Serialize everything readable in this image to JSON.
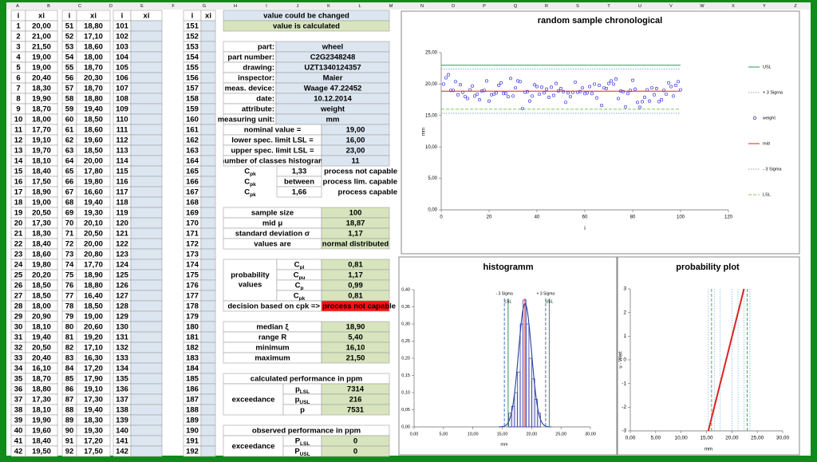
{
  "column_letters": [
    "A",
    "B",
    "C",
    "D",
    "E",
    "F",
    "G",
    "H",
    "I",
    "J",
    "K",
    "L",
    "M",
    "N",
    "O",
    "P",
    "Q",
    "R",
    "S",
    "T",
    "U",
    "V",
    "W",
    "X",
    "Y",
    "Z"
  ],
  "measurements": {
    "headers": [
      "i",
      "xi",
      "i",
      "xi",
      "i",
      "xi",
      "i",
      "xi"
    ],
    "rows": [
      [
        1,
        "20,00",
        51,
        "18,80",
        101,
        151
      ],
      [
        2,
        "21,00",
        52,
        "17,10",
        102,
        152
      ],
      [
        3,
        "21,50",
        53,
        "18,60",
        103,
        153
      ],
      [
        4,
        "19,00",
        54,
        "18,00",
        104,
        154
      ],
      [
        5,
        "19,00",
        55,
        "18,70",
        105,
        155
      ],
      [
        6,
        "20,40",
        56,
        "20,30",
        106,
        156
      ],
      [
        7,
        "18,30",
        57,
        "18,70",
        107,
        157
      ],
      [
        8,
        "19,90",
        58,
        "18,80",
        108,
        158
      ],
      [
        9,
        "18,70",
        59,
        "19,40",
        109,
        159
      ],
      [
        10,
        "18,00",
        60,
        "18,50",
        110,
        160
      ],
      [
        11,
        "17,70",
        61,
        "18,60",
        111,
        161
      ],
      [
        12,
        "19,10",
        62,
        "19,60",
        112,
        162
      ],
      [
        13,
        "19,70",
        63,
        "18,50",
        113,
        163
      ],
      [
        14,
        "18,10",
        64,
        "20,00",
        114,
        164
      ],
      [
        15,
        "18,40",
        65,
        "17,80",
        115,
        165
      ],
      [
        16,
        "17,50",
        66,
        "19,80",
        116,
        166
      ],
      [
        17,
        "18,90",
        67,
        "16,60",
        117,
        167
      ],
      [
        18,
        "19,00",
        68,
        "19,40",
        118,
        168
      ],
      [
        19,
        "20,50",
        69,
        "19,30",
        119,
        169
      ],
      [
        20,
        "17,30",
        70,
        "20,10",
        120,
        170
      ],
      [
        21,
        "18,30",
        71,
        "20,50",
        121,
        171
      ],
      [
        22,
        "18,40",
        72,
        "20,00",
        122,
        172
      ],
      [
        23,
        "18,60",
        73,
        "20,80",
        123,
        173
      ],
      [
        24,
        "19,80",
        74,
        "17,70",
        124,
        174
      ],
      [
        25,
        "20,20",
        75,
        "18,90",
        125,
        175
      ],
      [
        26,
        "18,50",
        76,
        "18,80",
        126,
        176
      ],
      [
        27,
        "18,50",
        77,
        "16,40",
        127,
        177
      ],
      [
        28,
        "18,00",
        78,
        "18,50",
        128,
        178
      ],
      [
        29,
        "20,90",
        79,
        "19,00",
        129,
        179
      ],
      [
        30,
        "18,10",
        80,
        "20,60",
        130,
        180
      ],
      [
        31,
        "19,40",
        81,
        "19,20",
        131,
        181
      ],
      [
        32,
        "20,50",
        82,
        "17,10",
        132,
        182
      ],
      [
        33,
        "20,40",
        83,
        "16,30",
        133,
        183
      ],
      [
        34,
        "16,10",
        84,
        "17,20",
        134,
        184
      ],
      [
        35,
        "18,70",
        85,
        "17,90",
        135,
        185
      ],
      [
        36,
        "18,80",
        86,
        "19,10",
        136,
        186
      ],
      [
        37,
        "17,30",
        87,
        "17,30",
        137,
        187
      ],
      [
        38,
        "18,10",
        88,
        "19,40",
        138,
        188
      ],
      [
        39,
        "19,90",
        89,
        "18,30",
        139,
        189
      ],
      [
        40,
        "19,60",
        90,
        "19,30",
        140,
        190
      ],
      [
        41,
        "18,40",
        91,
        "17,20",
        141,
        191
      ],
      [
        42,
        "19,50",
        92,
        "17,50",
        142,
        192
      ]
    ]
  },
  "key": {
    "changed": "value could be changed",
    "calculated": "value is calculated"
  },
  "part_info": [
    [
      "part:",
      "wheel"
    ],
    [
      "part number:",
      "C2G2348248"
    ],
    [
      "drawing:",
      "UZT1340124357"
    ],
    [
      "inspector:",
      "Maier"
    ],
    [
      "meas. device:",
      "Waage 47.22452"
    ],
    [
      "date:",
      "10.12.2014"
    ],
    [
      "attribute:",
      "weight"
    ],
    [
      "measuring unit:",
      "mm"
    ]
  ],
  "specs": [
    [
      "nominal value =",
      "19,00"
    ],
    [
      "lower spec. limit LSL =",
      "16,00"
    ],
    [
      "upper spec. limit LSL =",
      "23,00"
    ],
    [
      "number of classes histogram",
      "11"
    ]
  ],
  "capability": [
    {
      "c": "C",
      "sub": "pk",
      "value": "1,33",
      "result": "process not capable"
    },
    {
      "c": "C",
      "sub": "pk",
      "value": "between",
      "result": "process lim. capable"
    },
    {
      "c": "C",
      "sub": "pk",
      "value": "1,66",
      "result": "process capable"
    }
  ],
  "statistics": [
    [
      "sample size",
      "100"
    ],
    [
      "mid μ",
      "18,87"
    ],
    [
      "standard deviation σ",
      "1,17"
    ],
    [
      "values are",
      "normal distributed"
    ]
  ],
  "probability": {
    "label_lines": [
      "probability",
      "values"
    ],
    "rows": [
      {
        "c": "C",
        "sub": "pl",
        "value": "0,81"
      },
      {
        "c": "C",
        "sub": "pu",
        "value": "1,17"
      },
      {
        "c": "C",
        "sub": "p",
        "value": "0,99"
      },
      {
        "c": "C",
        "sub": "pk",
        "value": "0,81"
      }
    ]
  },
  "decision": {
    "label": "decision based on cpk =>",
    "value": "process not capable"
  },
  "robust": [
    [
      "median ξ",
      "18,90"
    ],
    [
      "range R",
      "5,40"
    ],
    [
      "minimum",
      "16,10"
    ],
    [
      "maximum",
      "21,50"
    ]
  ],
  "calculated_ppm": {
    "title": "calculated performance in ppm",
    "label": "exceedance",
    "rows": [
      {
        "p": "p",
        "sub": "LSL",
        "value": "7314"
      },
      {
        "p": "p",
        "sub": "USL",
        "value": "216"
      },
      {
        "p": "p",
        "value": "7531"
      }
    ]
  },
  "observed_ppm": {
    "title": "observed performance in ppm",
    "label": "exceedance",
    "rows": [
      {
        "p": "P",
        "sub": "LSL",
        "value": "0"
      },
      {
        "p": "P",
        "sub": "USL",
        "value": "0"
      }
    ]
  },
  "chart_data": [
    {
      "type": "scatter",
      "title": "random sample chronological",
      "x_label": "i",
      "y_label": "mm",
      "xlim": [
        0,
        120
      ],
      "xticks": [
        0,
        20,
        40,
        60,
        80,
        100,
        120
      ],
      "ylim": [
        0,
        25
      ],
      "yticks": [
        {
          "value": 0,
          "label": "0,00"
        },
        {
          "value": 5,
          "label": "5,00"
        },
        {
          "value": 10,
          "label": "10,00"
        },
        {
          "value": 15,
          "label": "15,00"
        },
        {
          "value": 20,
          "label": "20,00"
        },
        {
          "value": 25,
          "label": "25,00"
        }
      ],
      "series": [
        {
          "name": "USL",
          "color": "#2e9a5a",
          "style": "solid",
          "x": [
            0,
            100
          ],
          "values": [
            23,
            23
          ]
        },
        {
          "name": "+ 3 Sigma",
          "color": "#7fa7c9",
          "style": "dotted",
          "x": [
            0,
            100
          ],
          "values": [
            22.38,
            22.38
          ]
        },
        {
          "name": "weight",
          "color": "#3a3ae0",
          "style": "marker",
          "x": [
            1,
            2,
            3,
            4,
            5,
            6,
            7,
            8,
            9,
            10,
            11,
            12,
            13,
            14,
            15,
            16,
            17,
            18,
            19,
            20,
            21,
            22,
            23,
            24,
            25,
            26,
            27,
            28,
            29,
            30,
            31,
            32,
            33,
            34,
            35,
            36,
            37,
            38,
            39,
            40,
            41,
            42,
            43,
            44,
            45,
            46,
            47,
            48,
            49,
            50,
            51,
            52,
            53,
            54,
            55,
            56,
            57,
            58,
            59,
            60,
            61,
            62,
            63,
            64,
            65,
            66,
            67,
            68,
            69,
            70,
            71,
            72,
            73,
            74,
            75,
            76,
            77,
            78,
            79,
            80,
            81,
            82,
            83,
            84,
            85,
            86,
            87,
            88,
            89,
            90,
            91,
            92,
            93,
            94,
            95,
            96,
            97,
            98,
            99,
            100
          ],
          "values": [
            20.0,
            21.0,
            21.5,
            19.0,
            19.0,
            20.4,
            18.3,
            19.9,
            18.7,
            18.0,
            17.7,
            19.1,
            19.7,
            18.1,
            18.4,
            17.5,
            18.9,
            19.0,
            20.5,
            17.3,
            18.3,
            18.4,
            18.6,
            19.8,
            20.2,
            18.5,
            18.5,
            18.0,
            20.9,
            18.1,
            19.4,
            20.5,
            20.4,
            16.1,
            18.7,
            18.8,
            17.3,
            18.1,
            19.9,
            19.6,
            18.4,
            19.5,
            18.6,
            19.2,
            17.9,
            19.5,
            18.2,
            20.1,
            18.9,
            19.3,
            18.8,
            17.1,
            18.6,
            18.0,
            18.7,
            20.3,
            18.7,
            18.8,
            19.4,
            18.5,
            18.6,
            19.6,
            18.5,
            20.0,
            17.8,
            19.8,
            16.6,
            19.4,
            19.3,
            20.1,
            20.5,
            20.0,
            20.8,
            17.7,
            18.9,
            18.8,
            16.4,
            18.5,
            19.0,
            20.6,
            19.2,
            17.1,
            16.3,
            17.2,
            17.9,
            19.1,
            17.3,
            19.4,
            18.3,
            19.3,
            17.2,
            17.5,
            19.0,
            18.4,
            20.2,
            19.6,
            18.1,
            19.8,
            20.4,
            19.1
          ]
        },
        {
          "name": "mid",
          "color": "#e02020",
          "style": "solid",
          "x": [
            0,
            100
          ],
          "values": [
            18.87,
            18.87
          ]
        },
        {
          "name": "- 3 Sigma",
          "color": "#7fa7c9",
          "style": "dotted",
          "x": [
            0,
            100
          ],
          "values": [
            15.36,
            15.36
          ]
        },
        {
          "name": "LSL",
          "color": "#7ec850",
          "style": "dashed",
          "x": [
            0,
            100
          ],
          "values": [
            16,
            16
          ]
        }
      ]
    },
    {
      "type": "histogram",
      "title": "histogramm",
      "x_label": "mm",
      "xlim": [
        0,
        30
      ],
      "xticks": [
        {
          "value": 0,
          "label": "0,00"
        },
        {
          "value": 5,
          "label": "5,00"
        },
        {
          "value": 10,
          "label": "10,00"
        },
        {
          "value": 15,
          "label": "15,00"
        },
        {
          "value": 20,
          "label": "20,00"
        },
        {
          "value": 25,
          "label": "25,00"
        },
        {
          "value": 30,
          "label": "30,00"
        }
      ],
      "ylim": [
        0,
        0.4
      ],
      "yticks": [
        {
          "value": 0,
          "label": "0,00"
        },
        {
          "value": 0.05,
          "label": "0,05"
        },
        {
          "value": 0.1,
          "label": "0,10"
        },
        {
          "value": 0.15,
          "label": "0,15"
        },
        {
          "value": 0.2,
          "label": "0,20"
        },
        {
          "value": 0.25,
          "label": "0,25"
        },
        {
          "value": 0.3,
          "label": "0,30"
        },
        {
          "value": 0.35,
          "label": "0,35"
        },
        {
          "value": 0.4,
          "label": "0,40"
        }
      ],
      "bins": [
        16.1,
        16.59,
        17.08,
        17.57,
        18.06,
        18.55,
        19.05,
        19.54,
        20.03,
        20.52,
        21.01,
        21.5
      ],
      "values": [
        0.04,
        0.06,
        0.1,
        0.16,
        0.3,
        0.37,
        0.3,
        0.2,
        0.14,
        0.08,
        0.04
      ],
      "color": "#3333aa",
      "markers": [
        {
          "label": "- 3 Sigma",
          "x": 15.36,
          "color": "#4a6fd0",
          "style": "dashed"
        },
        {
          "label": "LSL",
          "x": 16,
          "color": "#2e9a5a",
          "style": "solid"
        },
        {
          "x": 18.87,
          "color": "#e02020",
          "style": "solid"
        },
        {
          "label": "+ 3 Sigma",
          "x": 22.38,
          "color": "#4a6fd0",
          "style": "dashed"
        },
        {
          "label": "USL",
          "x": 23,
          "color": "#2e9a5a",
          "style": "solid"
        }
      ]
    },
    {
      "type": "line",
      "title": "probability plot",
      "x_label": "mm",
      "y_label": "u - Wert",
      "xlim": [
        0,
        30
      ],
      "xticks": [
        {
          "value": 0,
          "label": "0,00"
        },
        {
          "value": 5,
          "label": "5,00"
        },
        {
          "value": 10,
          "label": "10,00"
        },
        {
          "value": 15,
          "label": "15,00"
        },
        {
          "value": 20,
          "label": "20,00"
        },
        {
          "value": 25,
          "label": "25,00"
        },
        {
          "value": 30,
          "label": "30,00"
        }
      ],
      "ylim": [
        -3,
        3
      ],
      "yticks": [
        -3,
        -2,
        -1,
        0,
        1,
        2,
        3
      ],
      "series": [
        {
          "color": "#e02020",
          "x": [
            15.36,
            22.38
          ],
          "values": [
            -3,
            3
          ]
        }
      ],
      "vlines": [
        {
          "x": 15.36,
          "color": "#8fb8e0",
          "style": "dotted"
        },
        {
          "x": 16,
          "color": "#2e8a3a",
          "style": "dashed"
        },
        {
          "x": 16.53,
          "color": "#8fb8e0",
          "style": "dotted"
        },
        {
          "x": 17.7,
          "color": "#8fb8e0",
          "style": "dotted"
        },
        {
          "x": 20.04,
          "color": "#8fb8e0",
          "style": "dotted"
        },
        {
          "x": 21.21,
          "color": "#8fb8e0",
          "style": "dotted"
        },
        {
          "x": 22.38,
          "color": "#8fb8e0",
          "style": "dotted"
        },
        {
          "x": 23,
          "color": "#2e8a3a",
          "style": "dashed"
        },
        {
          "x": 23.55,
          "color": "#8fb8e0",
          "style": "dotted"
        }
      ]
    }
  ]
}
